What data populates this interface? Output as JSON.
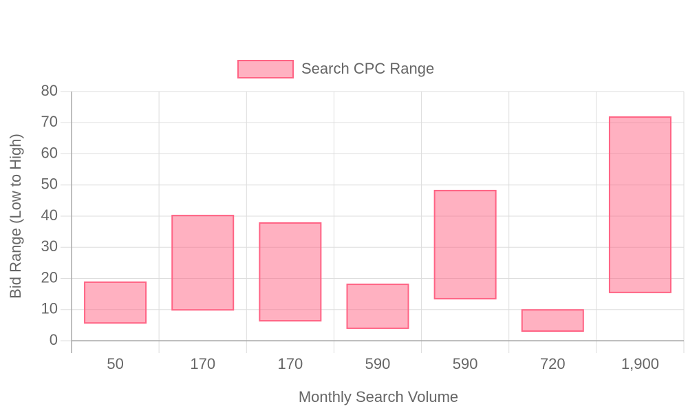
{
  "chart_data": {
    "type": "floating-bar",
    "x_label": "Monthly Search Volume",
    "y_label": "Bid Range (Low to High)",
    "categories": [
      "50",
      "170",
      "170",
      "590",
      "590",
      "720",
      "1,900"
    ],
    "series": [
      {
        "name": "Search CPC Range",
        "color": "#ff6384",
        "values": [
          [
            5.7,
            18.8
          ],
          [
            9.9,
            40.2
          ],
          [
            6.4,
            37.8
          ],
          [
            4.0,
            18.1
          ],
          [
            13.5,
            48.2
          ],
          [
            3.1,
            9.9
          ],
          [
            15.5,
            71.8
          ]
        ]
      }
    ],
    "ylim": [
      0,
      80
    ],
    "yticks": [
      0,
      10,
      20,
      30,
      40,
      50,
      60,
      70,
      80
    ],
    "grid": true,
    "legend": "top"
  }
}
